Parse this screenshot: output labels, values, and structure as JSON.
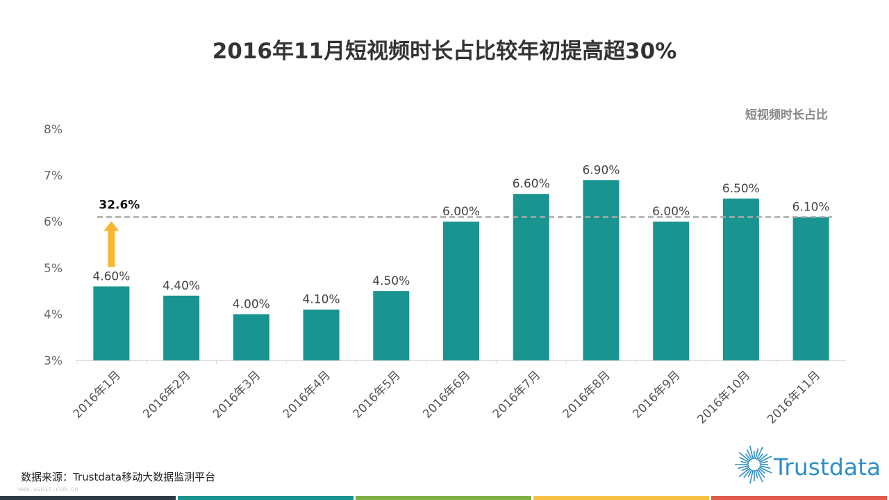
{
  "title": "2016年11月短视频时长占比较年初提高超30%",
  "legend": "短视频时长占比",
  "source": "数据来源：Trustdata移动大数据监测平台",
  "logo_text": "Trustdata",
  "watermark": "www.useit.com.cn",
  "colors": {
    "bar": "#1a9490",
    "arrow": "#f7b731",
    "dashed": "#aaaaaa",
    "footer": [
      "#2f3b45",
      "#1a9490",
      "#7fb045",
      "#f7c244",
      "#e25b4c"
    ]
  },
  "chart_data": {
    "type": "bar",
    "categories": [
      "2016年1月",
      "2016年2月",
      "2016年3月",
      "2016年4月",
      "2016年5月",
      "2016年6月",
      "2016年7月",
      "2016年8月",
      "2016年9月",
      "2016年10月",
      "2016年11月"
    ],
    "values": [
      4.6,
      4.4,
      4.0,
      4.1,
      4.5,
      6.0,
      6.6,
      6.9,
      6.0,
      6.5,
      6.1
    ],
    "data_labels": [
      "4.60%",
      "4.40%",
      "4.00%",
      "4.10%",
      "4.50%",
      "6.00%",
      "6.60%",
      "6.90%",
      "6.00%",
      "6.50%",
      "6.10%"
    ],
    "y_ticks": [
      "3%",
      "4%",
      "5%",
      "6%",
      "7%",
      "8%"
    ],
    "ylim": [
      3,
      8
    ],
    "reference_line": 6.1,
    "annotation": "32.6%",
    "annotation_arrow": {
      "from": 4.6,
      "to": 6.1
    },
    "legend_position": "top-right",
    "grid": false
  }
}
